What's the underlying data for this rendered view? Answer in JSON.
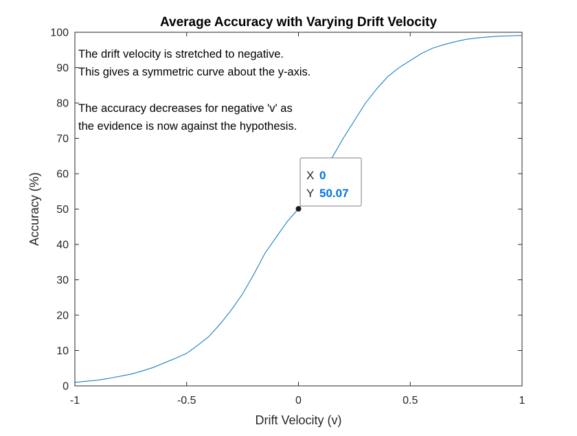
{
  "chart_data": {
    "type": "line",
    "title": "Average Accuracy with Varying Drift Velocity",
    "xlabel": "Drift Velocity (v)",
    "ylabel": "Accuracy (%)",
    "xlim": [
      -1,
      1
    ],
    "ylim": [
      0,
      100
    ],
    "xticks": [
      -1,
      -0.5,
      0,
      0.5,
      1
    ],
    "xtick_labels": [
      "-1",
      "-0.5",
      "0",
      "0.5",
      "1"
    ],
    "yticks": [
      0,
      10,
      20,
      30,
      40,
      50,
      60,
      70,
      80,
      90,
      100
    ],
    "ytick_labels": [
      "0",
      "10",
      "20",
      "30",
      "40",
      "50",
      "60",
      "70",
      "80",
      "90",
      "100"
    ],
    "grid": false,
    "line_color": "#0072bd",
    "series": [
      {
        "x": [
          -1.0,
          -0.95,
          -0.9,
          -0.85,
          -0.8,
          -0.75,
          -0.7,
          -0.65,
          -0.6,
          -0.55,
          -0.5,
          -0.45,
          -0.4,
          -0.35,
          -0.3,
          -0.25,
          -0.2,
          -0.15,
          -0.1,
          -0.05,
          0.0,
          0.05,
          0.1,
          0.15,
          0.2,
          0.25,
          0.3,
          0.35,
          0.4,
          0.45,
          0.5,
          0.55,
          0.6,
          0.65,
          0.7,
          0.75,
          0.8,
          0.85,
          0.9,
          0.95,
          1.0
        ],
        "y": [
          1.0,
          1.3,
          1.6,
          2.1,
          2.7,
          3.3,
          4.2,
          5.2,
          6.5,
          7.8,
          9.2,
          11.5,
          14.0,
          17.5,
          21.5,
          26.0,
          31.5,
          37.5,
          42.0,
          46.5,
          50.07,
          54.5,
          59.0,
          64.5,
          70.0,
          75.0,
          80.0,
          84.0,
          87.5,
          90.0,
          92.0,
          94.0,
          95.5,
          96.5,
          97.3,
          98.0,
          98.4,
          98.7,
          98.9,
          99.0,
          99.1
        ]
      }
    ],
    "annotations": [
      "The drift velocity is stretched to negative.",
      "This gives a symmetric curve about the y-axis.",
      "The accuracy decreases for negative 'v' as",
      "the evidence is now against the hypothesis."
    ],
    "datatip": {
      "x_key": "X",
      "x_value": "0",
      "y_key": "Y",
      "y_value": "50.07",
      "point": [
        0,
        50.07
      ]
    }
  }
}
